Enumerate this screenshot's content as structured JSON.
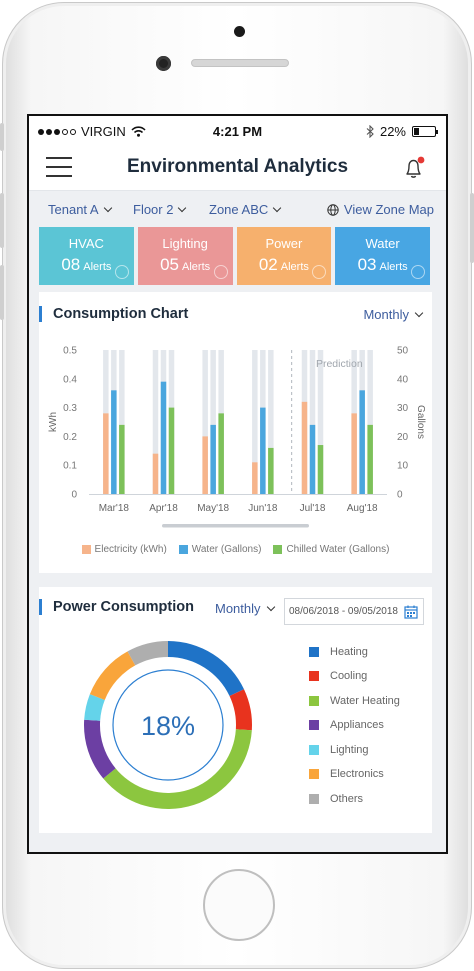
{
  "status_bar": {
    "carrier": "VIRGIN",
    "time": "4:21 PM",
    "battery": "22%"
  },
  "header": {
    "title": "Environmental Analytics",
    "notification_dot_color": "#e53935"
  },
  "filters": {
    "tenant": "Tenant A",
    "floor": "Floor 2",
    "zone": "Zone ABC",
    "view_zone_map": "View Zone Map"
  },
  "alert_cards": [
    {
      "name": "HVAC",
      "count": "08",
      "label": "Alerts",
      "color": "#5bc5d5"
    },
    {
      "name": "Lighting",
      "count": "05",
      "label": "Alerts",
      "color": "#ea9797"
    },
    {
      "name": "Power",
      "count": "02",
      "label": "Alerts",
      "color": "#f6b06d"
    },
    {
      "name": "Water",
      "count": "03",
      "label": "Alerts",
      "color": "#48a6e3"
    }
  ],
  "consumption": {
    "title": "Consumption Chart",
    "period": "Monthly",
    "prediction_label": "Prediction",
    "legend": [
      "Electricity (kWh)",
      "Water (Gallons)",
      "Chilled Water (Gallons)"
    ]
  },
  "power": {
    "title": "Power Consumption",
    "period": "Monthly",
    "date_range": "08/06/2018 - 09/05/2018",
    "center_value": "18%",
    "legend": [
      {
        "label": "Heating",
        "color": "#1f73c7"
      },
      {
        "label": "Cooling",
        "color": "#e8331e"
      },
      {
        "label": "Water Heating",
        "color": "#8cc63f"
      },
      {
        "label": "Appliances",
        "color": "#6c3fa3"
      },
      {
        "label": "Lighting",
        "color": "#64d3ea"
      },
      {
        "label": "Electronics",
        "color": "#f9a53b"
      },
      {
        "label": "Others",
        "color": "#aeaeae"
      }
    ]
  },
  "chart_data": [
    {
      "type": "bar",
      "title": "Consumption Chart",
      "categories": [
        "Mar'18",
        "Apr'18",
        "May'18",
        "Jun'18",
        "Jul'18",
        "Aug'18"
      ],
      "ylabel": "kWh",
      "ylim": [
        0,
        0.5
      ],
      "yticks": [
        "0",
        "0.1",
        "0.2",
        "0.3",
        "0.4",
        "0.5"
      ],
      "y2label": "Gallons",
      "y2lim": [
        0,
        50
      ],
      "y2ticks": [
        "0",
        "10",
        "20",
        "30",
        "40",
        "50"
      ],
      "prediction_from": "Jul'18",
      "series": [
        {
          "name": "Electricity (kWh)",
          "axis": "left",
          "color": "#f6b48b",
          "values": [
            0.28,
            0.14,
            0.2,
            0.11,
            0.32,
            0.28
          ]
        },
        {
          "name": "Water (Gallons)",
          "axis": "right",
          "color": "#4aa6de",
          "values": [
            36,
            39,
            24,
            30,
            24,
            36
          ]
        },
        {
          "name": "Chilled Water (Gallons)",
          "axis": "right",
          "color": "#7dc15a",
          "values": [
            24,
            30,
            28,
            16,
            17,
            24
          ]
        }
      ],
      "background_bar_color": "#e3e7ec",
      "grid": false,
      "legend_position": "bottom"
    },
    {
      "type": "pie",
      "title": "Power Consumption",
      "center_label": "18%",
      "labels": [
        "Heating",
        "Cooling",
        "Water Heating",
        "Appliances",
        "Lighting",
        "Electronics",
        "Others"
      ],
      "values": [
        18,
        8,
        38,
        12,
        5,
        11,
        8
      ],
      "colors": [
        "#1f73c7",
        "#e8331e",
        "#8cc63f",
        "#6c3fa3",
        "#64d3ea",
        "#f9a53b",
        "#aeaeae"
      ],
      "legend_position": "right"
    }
  ]
}
